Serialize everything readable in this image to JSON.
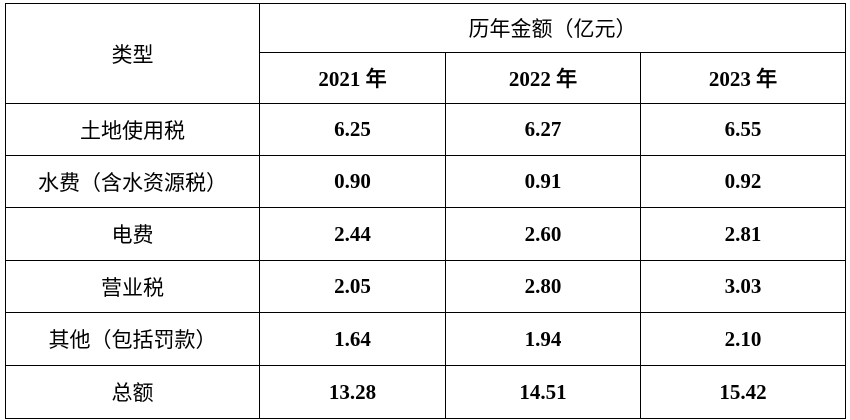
{
  "header": {
    "type_label": "类型",
    "group_label": "历年金额（亿元）",
    "years": [
      "2021 年",
      "2022 年",
      "2023 年"
    ]
  },
  "table": {
    "rows": [
      [
        "土地使用税",
        "6.25",
        "6.27",
        "6.55"
      ],
      [
        "水费（含水资源税）",
        "0.90",
        "0.91",
        "0.92"
      ],
      [
        "电费",
        "2.44",
        "2.60",
        "2.81"
      ],
      [
        "营业税",
        "2.05",
        "2.80",
        "3.03"
      ],
      [
        "其他（包括罚款）",
        "1.64",
        "1.94",
        "2.10"
      ],
      [
        "总额",
        "13.28",
        "14.51",
        "15.42"
      ]
    ]
  }
}
